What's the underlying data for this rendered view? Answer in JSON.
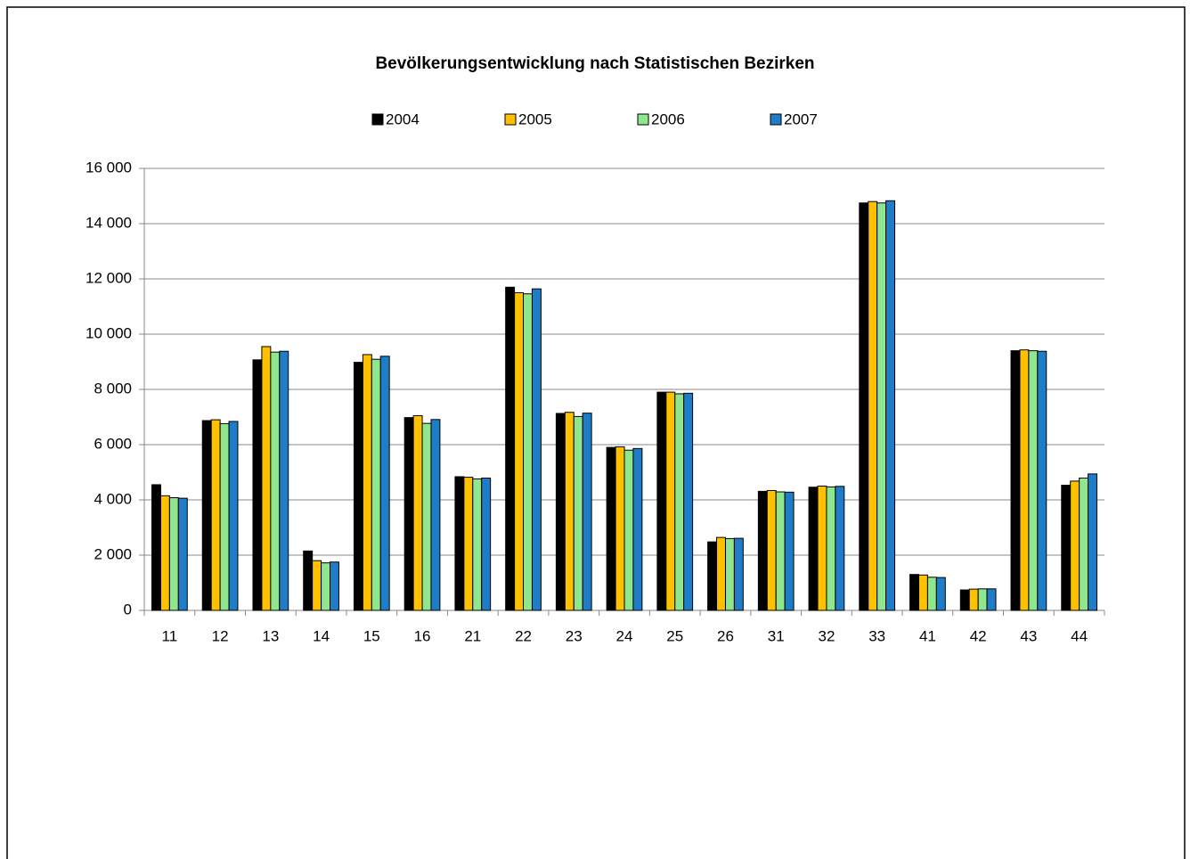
{
  "chart_data": {
    "type": "bar",
    "title": "Bevölkerungsentwicklung nach Statistischen Bezirken",
    "categories": [
      "11",
      "12",
      "13",
      "14",
      "15",
      "16",
      "21",
      "22",
      "23",
      "24",
      "25",
      "26",
      "31",
      "32",
      "33",
      "41",
      "42",
      "43",
      "44"
    ],
    "series": [
      {
        "name": "2004",
        "color": "#000000",
        "values": [
          4550,
          6870,
          9070,
          2150,
          8980,
          6980,
          4840,
          11700,
          7130,
          5900,
          7900,
          2480,
          4310,
          4460,
          14750,
          1300,
          740,
          9400,
          4530
        ]
      },
      {
        "name": "2005",
        "color": "#FFC000",
        "values": [
          4150,
          6900,
          9550,
          1800,
          9260,
          7050,
          4820,
          11500,
          7170,
          5920,
          7900,
          2640,
          4340,
          4500,
          14800,
          1280,
          770,
          9430,
          4680
        ]
      },
      {
        "name": "2006",
        "color": "#8EE68E",
        "values": [
          4080,
          6760,
          9350,
          1720,
          9090,
          6770,
          4760,
          11460,
          7020,
          5800,
          7840,
          2600,
          4290,
          4470,
          14750,
          1200,
          780,
          9400,
          4790
        ]
      },
      {
        "name": "2007",
        "color": "#1F7DC8",
        "values": [
          4060,
          6840,
          9380,
          1750,
          9200,
          6910,
          4790,
          11640,
          7140,
          5860,
          7860,
          2610,
          4280,
          4490,
          14830,
          1190,
          780,
          9380,
          4940
        ]
      }
    ],
    "ylim": [
      0,
      16000
    ],
    "yticks": [
      0,
      {
        "value": 2000,
        "label": "2 000"
      },
      {
        "value": 4000,
        "label": "4 000"
      },
      {
        "value": 6000,
        "label": "6 000"
      },
      {
        "value": 8000,
        "label": "8 000"
      },
      {
        "value": 10000,
        "label": "10 000"
      },
      {
        "value": 12000,
        "label": "12 000"
      },
      {
        "value": 14000,
        "label": "14 000"
      },
      {
        "value": 16000,
        "label": "16 000"
      }
    ],
    "grid": true,
    "legend": "top"
  }
}
